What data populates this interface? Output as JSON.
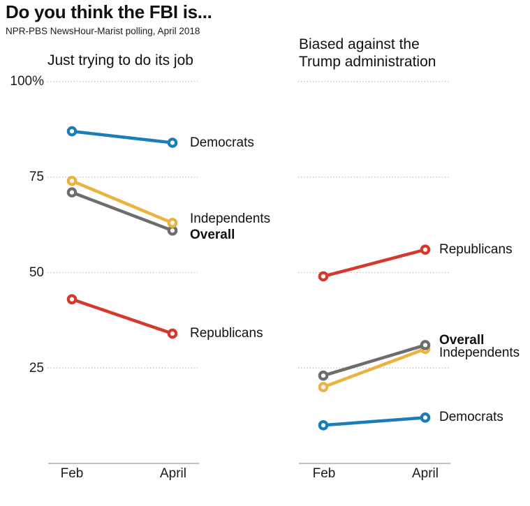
{
  "page": {
    "title": "Do you think the FBI is...",
    "subtitle": "NPR-PBS NewsHour-Marist polling, April 2018"
  },
  "colors": {
    "democrats": "#1b7db8",
    "republicans": "#d6392b",
    "independents": "#ebb23e",
    "overall": "#6d6d70",
    "grid": "#b0b0b0",
    "axis": "#9a9a9a",
    "text": "#111111",
    "background": "#ffffff"
  },
  "chart_data": [
    {
      "type": "line",
      "panel": "left",
      "title": "Just trying to do its job",
      "categories": [
        "Feb",
        "April"
      ],
      "ylim": [
        0,
        100
      ],
      "yticks": [
        100,
        75,
        50,
        25
      ],
      "ytick_labels": [
        "100%",
        "75",
        "50",
        "25"
      ],
      "grid": "dotted",
      "legend_position": "end-of-line",
      "series": [
        {
          "name": "Democrats",
          "color_key": "democrats",
          "values": [
            87,
            84
          ],
          "bold_label": false
        },
        {
          "name": "Independents",
          "color_key": "independents",
          "values": [
            74,
            63
          ],
          "bold_label": false
        },
        {
          "name": "Overall",
          "color_key": "overall",
          "values": [
            71,
            61
          ],
          "bold_label": true
        },
        {
          "name": "Republicans",
          "color_key": "republicans",
          "values": [
            43,
            34
          ],
          "bold_label": false
        }
      ]
    },
    {
      "type": "line",
      "panel": "right",
      "title": "Biased against the Trump administration",
      "title_lines": [
        "Biased against the",
        "Trump administration"
      ],
      "categories": [
        "Feb",
        "April"
      ],
      "ylim": [
        0,
        100
      ],
      "yticks": [
        100,
        75,
        50,
        25
      ],
      "ytick_labels": [],
      "grid": "dotted",
      "legend_position": "end-of-line",
      "series": [
        {
          "name": "Republicans",
          "color_key": "republicans",
          "values": [
            49,
            56
          ],
          "bold_label": false
        },
        {
          "name": "Overall",
          "color_key": "overall",
          "values": [
            23,
            31
          ],
          "bold_label": true
        },
        {
          "name": "Independents",
          "color_key": "independents",
          "values": [
            20,
            30
          ],
          "bold_label": false
        },
        {
          "name": "Democrats",
          "color_key": "democrats",
          "values": [
            10,
            12
          ],
          "bold_label": false
        }
      ]
    }
  ]
}
